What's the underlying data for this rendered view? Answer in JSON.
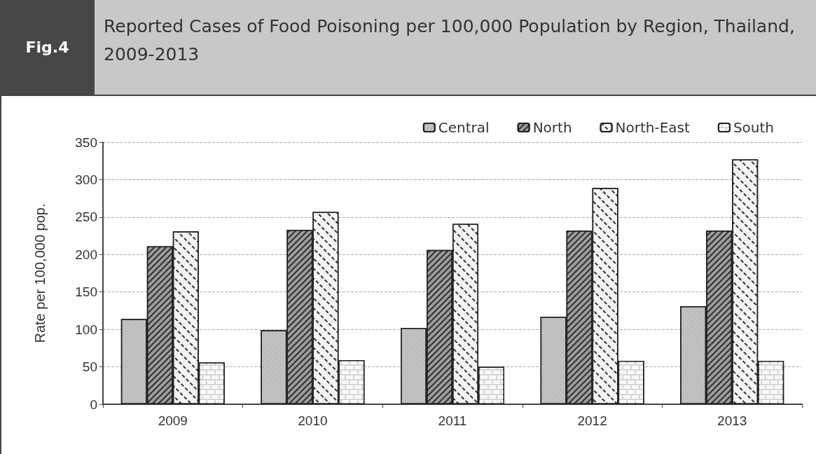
{
  "chart_data": {
    "type": "bar",
    "title": "Reported Cases of Food Poisoning per 100,000 Population by Region, Thailand, 2009-2013",
    "annotations": [
      "Fig.4"
    ],
    "ylabel": "Rate per 100,000 pop.",
    "categories": [
      "2009",
      "2010",
      "2011",
      "2012",
      "2013"
    ],
    "series": [
      {
        "name": "Central",
        "color": "#c4c4c4",
        "values": [
          114,
          99,
          102,
          117,
          131
        ]
      },
      {
        "name": "North",
        "color": "#9c9c9c",
        "values": [
          211,
          233,
          206,
          232,
          232
        ]
      },
      {
        "name": "North-East",
        "color": "#f4f4f4",
        "values": [
          231,
          257,
          241,
          289,
          327
        ]
      },
      {
        "name": "South",
        "color": "#d6d6d6",
        "values": [
          56,
          59,
          50,
          58,
          58
        ]
      }
    ],
    "ylim": [
      0,
      350
    ],
    "yticks": [
      0,
      50,
      100,
      150,
      200,
      250,
      300,
      350
    ],
    "grid": "y",
    "legend": "top right"
  }
}
